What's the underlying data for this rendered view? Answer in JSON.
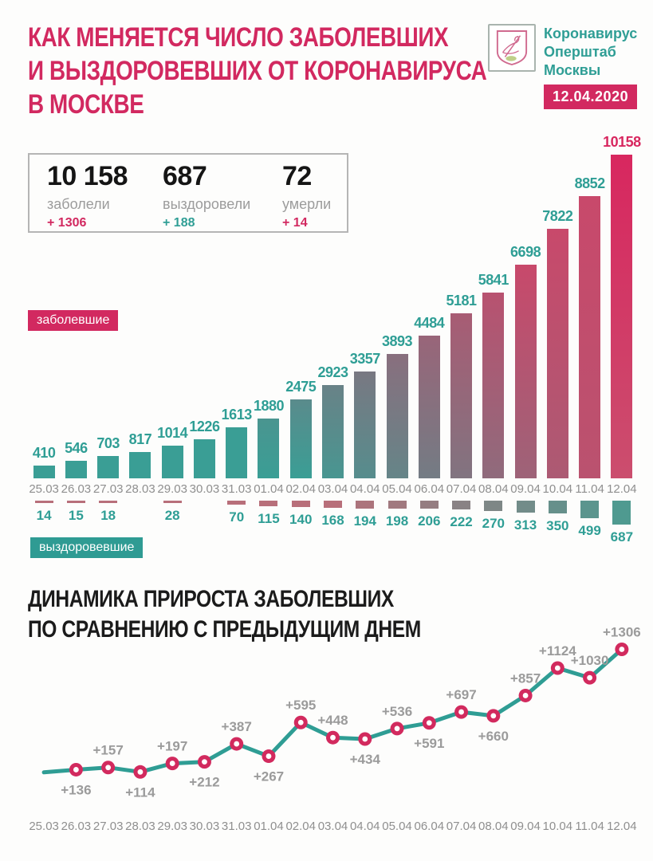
{
  "header": {
    "title_lines": [
      "КАК МЕНЯЕТСЯ ЧИСЛО ЗАБОЛЕВШИХ",
      "И ВЫЗДОРОВЕВШИХ ОТ КОРОНАВИРУСА",
      "В МОСКВЕ"
    ],
    "logo_lines": [
      "Коронавирус",
      "Оперштаб",
      "Москвы"
    ],
    "date_badge": "12.04.2020"
  },
  "stats": [
    {
      "value": "10 158",
      "label": "заболели",
      "delta": "+ 1306",
      "delta_color": "#d22960"
    },
    {
      "value": "687",
      "label": "выздоровели",
      "delta": "+ 188",
      "delta_color": "#2f9e95"
    },
    {
      "value": "72",
      "label": "умерли",
      "delta": "+ 14",
      "delta_color": "#d22960"
    }
  ],
  "legend": {
    "infected_label": "заболевшие",
    "recovered_label": "выздоровевшие"
  },
  "colors": {
    "accent_crimson": "#d22960",
    "accent_teal": "#2f9e95",
    "bar_teal": "#3a9e95",
    "bar_crimson": "#c8496b",
    "bar_final_top": "#d8275f",
    "bar_final_bottom": "#cb4e6e",
    "small_bar_rose": "#b86f7a",
    "small_bar_teal": "#4f9a90",
    "line_teal": "#2f9d94",
    "marker_crimson": "#d22a5e",
    "label_gray": "#9b9b9b",
    "date_gray": "#8f8f8f"
  },
  "chart_data": [
    {
      "type": "bar",
      "title": "заболевшие / выздоровевшие по датам",
      "categories": [
        "25.03",
        "26.03",
        "27.03",
        "28.03",
        "29.03",
        "30.03",
        "31.03",
        "01.04",
        "02.04",
        "03.04",
        "04.04",
        "05.04",
        "06.04",
        "07.04",
        "08.04",
        "09.04",
        "10.04",
        "11.04",
        "12.04"
      ],
      "series": [
        {
          "name": "заболевшие",
          "values": [
            410,
            546,
            703,
            817,
            1014,
            1226,
            1613,
            1880,
            2475,
            2923,
            3357,
            3893,
            4484,
            5181,
            5841,
            6698,
            7822,
            8852,
            10158
          ]
        },
        {
          "name": "выздоровевшие",
          "values": [
            14,
            15,
            18,
            null,
            28,
            null,
            70,
            115,
            140,
            168,
            194,
            198,
            206,
            222,
            270,
            313,
            350,
            499,
            687
          ]
        }
      ],
      "ylim_infected": [
        0,
        10158
      ],
      "ylim_recovered": [
        0,
        687
      ],
      "grid": false,
      "legend_position": "badges-left",
      "note": "recovered bars drawn downward below the date axis; labels on all bars; final infected label colored crimson"
    },
    {
      "type": "line",
      "title_lines": [
        "ДИНАМИКА ПРИРОСТА ЗАБОЛЕВШИХ",
        "ПО СРАВНЕНИЮ С ПРЕДЫДУЩИМ ДНЕМ"
      ],
      "categories": [
        "25.03",
        "26.03",
        "27.03",
        "28.03",
        "29.03",
        "30.03",
        "31.03",
        "01.04",
        "02.04",
        "03.04",
        "04.04",
        "05.04",
        "06.04",
        "07.04",
        "08.04",
        "09.04",
        "10.04",
        "11.04",
        "12.04"
      ],
      "values": [
        null,
        136,
        157,
        114,
        197,
        212,
        387,
        267,
        595,
        448,
        434,
        536,
        591,
        697,
        660,
        857,
        1124,
        1030,
        1306
      ],
      "labels": [
        "",
        "+136",
        "+157",
        "+114",
        "+197",
        "+212",
        "+387",
        "+267",
        "+595",
        "+448",
        "+434",
        "+536",
        "+591",
        "+697",
        "+660",
        "+857",
        "+1124",
        "+1030",
        "+1306"
      ],
      "label_side": [
        "",
        "below",
        "above",
        "below",
        "above",
        "below",
        "above",
        "below",
        "above",
        "above",
        "below",
        "above",
        "below",
        "above",
        "below",
        "above",
        "above",
        "above",
        "above"
      ],
      "ylim": [
        0,
        1400
      ],
      "grid": false,
      "note": "first point (25.03) has no marker and no label"
    }
  ]
}
